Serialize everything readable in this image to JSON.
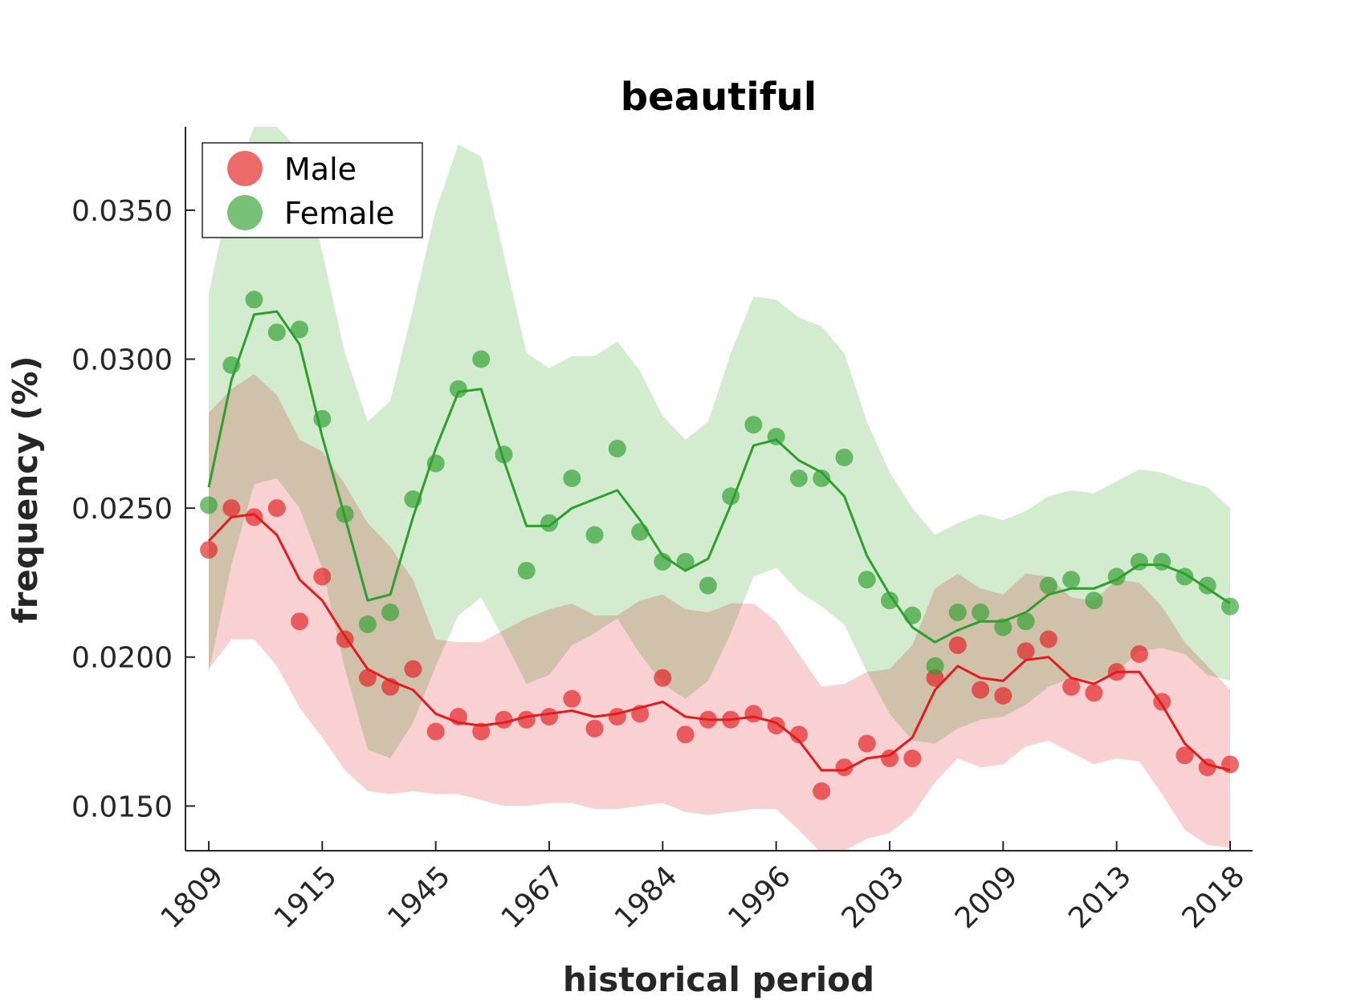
{
  "chart_data": {
    "type": "line",
    "title": "beautiful",
    "xlabel": "historical period",
    "ylabel": "frequency (%)",
    "ylim": [
      0.0135,
      0.0378
    ],
    "ytick_values": [
      0.015,
      0.02,
      0.025,
      0.03,
      0.035
    ],
    "yticks": [
      "0.0150",
      "0.0200",
      "0.0250",
      "0.0300",
      "0.0350"
    ],
    "xtick_indices": [
      0,
      5,
      10,
      15,
      20,
      25,
      30,
      35,
      40,
      45
    ],
    "xticks": [
      "1809",
      "1915",
      "1945",
      "1967",
      "1984",
      "1996",
      "2003",
      "2009",
      "2013",
      "2018"
    ],
    "x_index_range": [
      0,
      45
    ],
    "grid": false,
    "legend": {
      "placement": "top-left",
      "entries": [
        "Male",
        "Female"
      ]
    },
    "series": [
      {
        "name": "Male",
        "color": "#e41a1c",
        "band_color": "#f4a3a5",
        "points": [
          0.0236,
          0.025,
          0.0247,
          0.025,
          0.0212,
          0.0227,
          0.0206,
          0.0193,
          0.019,
          0.0196,
          0.0175,
          0.018,
          0.0175,
          0.0179,
          0.0179,
          0.018,
          0.0186,
          0.0176,
          0.018,
          0.0181,
          0.0193,
          0.0174,
          0.0179,
          0.0179,
          0.0181,
          0.0177,
          0.0174,
          0.0155,
          0.0163,
          0.0171,
          0.0166,
          0.0166,
          0.0193,
          0.0204,
          0.0189,
          0.0187,
          0.0202,
          0.0206,
          0.019,
          0.0188,
          0.0195,
          0.0201,
          0.0185,
          0.0167,
          0.0163,
          0.0164
        ],
        "smoothed": [
          0.0239,
          0.0247,
          0.0248,
          0.0241,
          0.0226,
          0.0219,
          0.0207,
          0.0196,
          0.0192,
          0.0189,
          0.0181,
          0.0178,
          0.0177,
          0.0178,
          0.018,
          0.0181,
          0.0182,
          0.018,
          0.0181,
          0.0183,
          0.0185,
          0.018,
          0.0179,
          0.0179,
          0.018,
          0.0178,
          0.0172,
          0.0162,
          0.0162,
          0.0166,
          0.0167,
          0.0173,
          0.0189,
          0.0197,
          0.0193,
          0.0192,
          0.0199,
          0.02,
          0.0193,
          0.0191,
          0.0195,
          0.0195,
          0.0184,
          0.0171,
          0.0164,
          0.0162
        ],
        "band_upper": [
          0.0282,
          0.029,
          0.0295,
          0.0288,
          0.0273,
          0.0269,
          0.0258,
          0.0245,
          0.0237,
          0.0226,
          0.0206,
          0.0205,
          0.0205,
          0.0209,
          0.0213,
          0.0216,
          0.0218,
          0.0214,
          0.0214,
          0.0219,
          0.0221,
          0.0216,
          0.0215,
          0.0218,
          0.0218,
          0.0212,
          0.0201,
          0.019,
          0.0191,
          0.0195,
          0.0196,
          0.0204,
          0.0223,
          0.0228,
          0.0223,
          0.0221,
          0.0228,
          0.0227,
          0.022,
          0.0219,
          0.0226,
          0.0225,
          0.0217,
          0.0205,
          0.0197,
          0.0189
        ],
        "band_lower": [
          0.0196,
          0.0206,
          0.0206,
          0.0197,
          0.0183,
          0.0173,
          0.0162,
          0.0155,
          0.0154,
          0.0155,
          0.0154,
          0.0154,
          0.0152,
          0.015,
          0.015,
          0.0151,
          0.0151,
          0.0149,
          0.0149,
          0.015,
          0.0151,
          0.0148,
          0.0147,
          0.0148,
          0.0149,
          0.0149,
          0.0142,
          0.0134,
          0.0135,
          0.0139,
          0.0141,
          0.0147,
          0.0158,
          0.0166,
          0.0163,
          0.0164,
          0.017,
          0.0172,
          0.0168,
          0.0164,
          0.0166,
          0.0165,
          0.0154,
          0.0142,
          0.0137,
          0.0136
        ]
      },
      {
        "name": "Female",
        "color": "#2ca02c",
        "band_color": "#a8d89e",
        "points": [
          0.0251,
          0.0298,
          0.032,
          0.0309,
          0.031,
          0.028,
          0.0248,
          0.0211,
          0.0215,
          0.0253,
          0.0265,
          0.029,
          0.03,
          0.0268,
          0.0229,
          0.0245,
          0.026,
          0.0241,
          0.027,
          0.0242,
          0.0232,
          0.0232,
          0.0224,
          0.0254,
          0.0278,
          0.0274,
          0.026,
          0.026,
          0.0267,
          0.0226,
          0.0219,
          0.0214,
          0.0197,
          0.0215,
          0.0215,
          0.021,
          0.0212,
          0.0224,
          0.0226,
          0.0219,
          0.0227,
          0.0232,
          0.0232,
          0.0227,
          0.0224,
          0.0217
        ],
        "smoothed": [
          0.0257,
          0.0293,
          0.0315,
          0.0316,
          0.0305,
          0.0274,
          0.0247,
          0.0219,
          0.0221,
          0.0247,
          0.027,
          0.0289,
          0.029,
          0.0266,
          0.0244,
          0.0244,
          0.025,
          0.0253,
          0.0256,
          0.0246,
          0.0234,
          0.0229,
          0.0233,
          0.0251,
          0.0271,
          0.0273,
          0.0266,
          0.0262,
          0.0254,
          0.0234,
          0.0221,
          0.021,
          0.0205,
          0.0209,
          0.0212,
          0.0212,
          0.0215,
          0.0221,
          0.0223,
          0.0223,
          0.0226,
          0.0231,
          0.0231,
          0.0228,
          0.0223,
          0.0218
        ],
        "band_upper": [
          0.0322,
          0.0358,
          0.0378,
          0.0378,
          0.037,
          0.0336,
          0.0302,
          0.0279,
          0.0286,
          0.0317,
          0.035,
          0.0372,
          0.0368,
          0.0335,
          0.0302,
          0.0297,
          0.0301,
          0.0301,
          0.0306,
          0.0296,
          0.0281,
          0.0273,
          0.0279,
          0.0302,
          0.0321,
          0.032,
          0.0314,
          0.0311,
          0.0302,
          0.0279,
          0.0262,
          0.025,
          0.0241,
          0.0245,
          0.0248,
          0.0246,
          0.0249,
          0.0254,
          0.0256,
          0.0255,
          0.0259,
          0.0263,
          0.0262,
          0.0259,
          0.0257,
          0.025
        ],
        "band_lower": [
          0.0195,
          0.0231,
          0.0258,
          0.026,
          0.025,
          0.023,
          0.0196,
          0.0169,
          0.0166,
          0.0178,
          0.0197,
          0.0214,
          0.022,
          0.0206,
          0.0191,
          0.0194,
          0.0204,
          0.0208,
          0.0213,
          0.0201,
          0.0191,
          0.0186,
          0.0192,
          0.0208,
          0.0227,
          0.023,
          0.0222,
          0.0217,
          0.0211,
          0.0195,
          0.0181,
          0.0172,
          0.0171,
          0.0176,
          0.0179,
          0.018,
          0.0184,
          0.019,
          0.0193,
          0.0192,
          0.0195,
          0.0202,
          0.0203,
          0.0201,
          0.0194,
          0.0192
        ]
      }
    ]
  }
}
